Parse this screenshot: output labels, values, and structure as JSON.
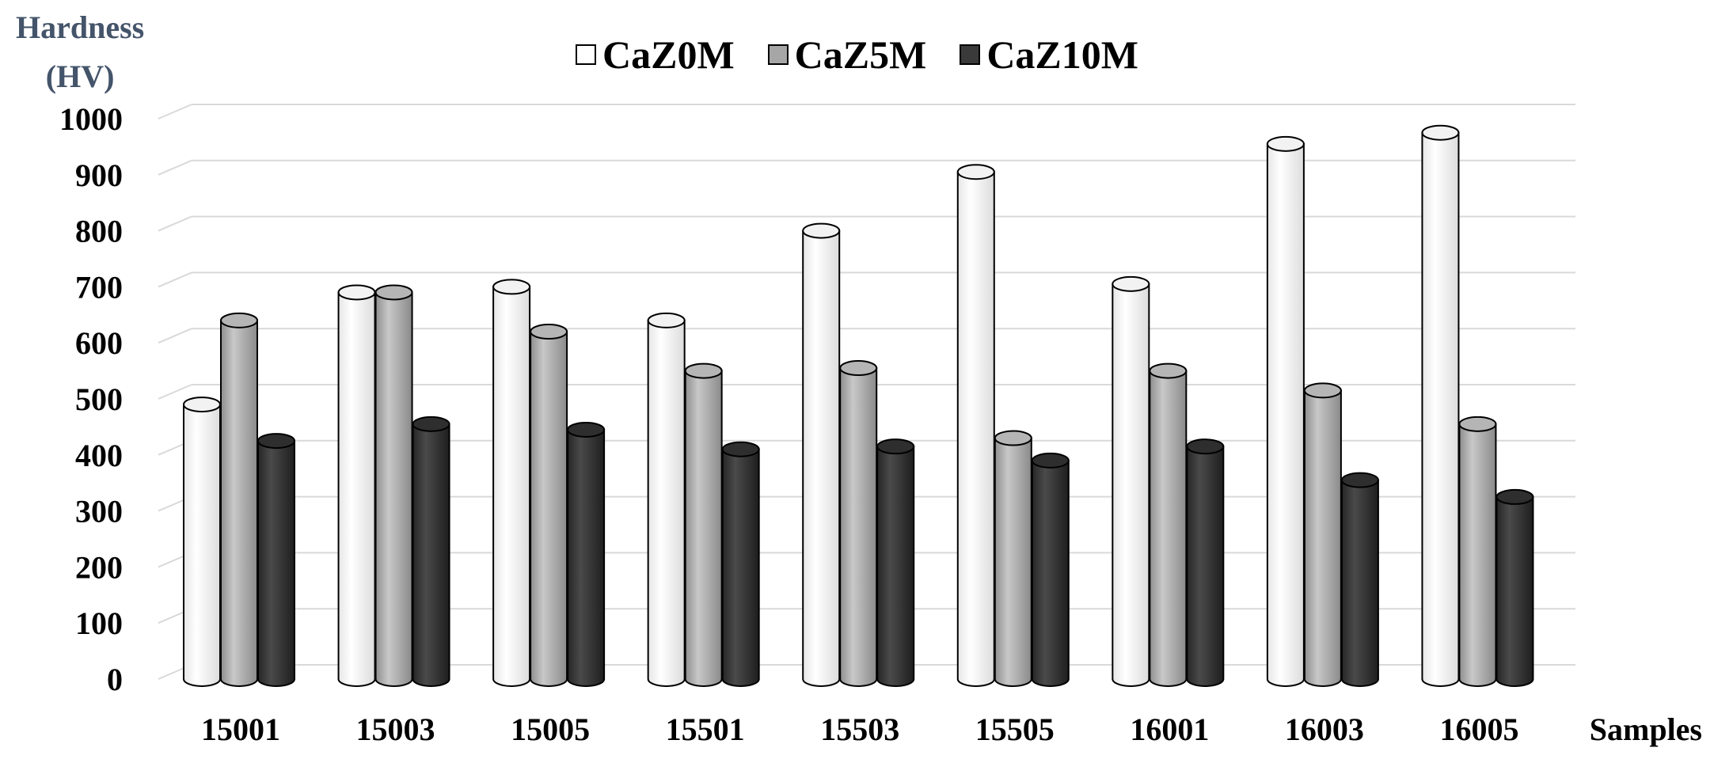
{
  "chart_data": {
    "type": "bar",
    "ylabel_lines": [
      "Hardness",
      "(HV)"
    ],
    "xlabel": "Samples",
    "categories": [
      "15001",
      "15003",
      "15005",
      "15501",
      "15503",
      "15505",
      "16001",
      "16003",
      "16005"
    ],
    "series": [
      {
        "name": "CaZ0M",
        "values": [
          490,
          690,
          700,
          640,
          800,
          905,
          705,
          955,
          975
        ]
      },
      {
        "name": "CaZ5M",
        "values": [
          640,
          690,
          620,
          550,
          555,
          430,
          550,
          515,
          455
        ]
      },
      {
        "name": "CaZ10M",
        "values": [
          425,
          455,
          445,
          410,
          415,
          390,
          415,
          355,
          325
        ]
      }
    ],
    "yticks": [
      "0",
      "100",
      "200",
      "300",
      "400",
      "500",
      "600",
      "700",
      "800",
      "900",
      "1000"
    ],
    "ylim": [
      0,
      1000
    ],
    "grid": true,
    "legend_position": "top-center",
    "colors": {
      "CaZ0M": "#ffffff",
      "CaZ5M": "#a6a6a6",
      "CaZ10M": "#3a3a3a"
    }
  }
}
